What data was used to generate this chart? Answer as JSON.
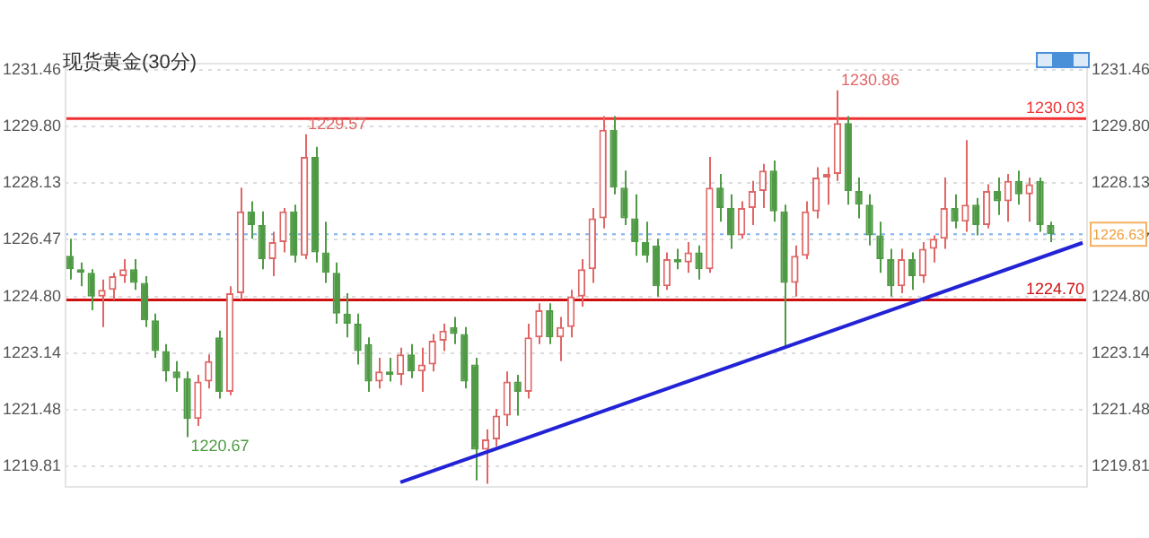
{
  "chart_data": {
    "type": "candlestick",
    "title": "现货黄金(30分)",
    "categories": [
      null,
      null,
      null,
      null,
      null,
      null,
      null,
      null,
      null,
      null,
      null,
      null,
      null,
      null,
      null,
      null,
      null,
      null,
      null,
      null,
      null,
      null,
      null,
      null,
      null,
      null,
      null,
      null,
      null,
      null,
      null,
      null,
      null,
      null,
      null,
      null,
      null,
      null,
      null,
      null,
      null,
      null,
      null,
      null,
      null,
      null,
      null,
      null,
      null,
      null,
      null,
      null,
      null,
      null,
      null,
      null,
      null,
      null,
      null,
      null,
      null,
      null,
      null,
      null,
      null,
      null,
      null,
      null,
      null,
      null,
      null,
      null,
      null,
      null,
      null,
      null,
      null,
      null,
      null,
      null,
      null,
      null,
      null,
      null,
      null,
      null,
      null,
      null,
      null,
      null,
      null,
      null,
      null,
      null,
      null,
      null
    ],
    "ohlc": [
      [
        1226.0,
        1226.5,
        1225.3,
        1225.6
      ],
      [
        1225.6,
        1225.8,
        1225.1,
        1225.5
      ],
      [
        1225.5,
        1225.6,
        1224.4,
        1224.8
      ],
      [
        1224.8,
        1225.3,
        1223.9,
        1225.0
      ],
      [
        1225.0,
        1225.5,
        1224.7,
        1225.4
      ],
      [
        1225.4,
        1225.9,
        1225.2,
        1225.6
      ],
      [
        1225.6,
        1225.9,
        1225.0,
        1225.2
      ],
      [
        1225.2,
        1225.4,
        1223.9,
        1224.1
      ],
      [
        1224.1,
        1224.3,
        1223.0,
        1223.2
      ],
      [
        1223.2,
        1223.4,
        1222.3,
        1222.6
      ],
      [
        1222.6,
        1222.9,
        1222.0,
        1222.4
      ],
      [
        1222.4,
        1222.6,
        1220.67,
        1221.2
      ],
      [
        1221.2,
        1222.5,
        1221.0,
        1222.3
      ],
      [
        1222.3,
        1223.1,
        1222.1,
        1222.9
      ],
      [
        1223.6,
        1223.8,
        1221.8,
        1222.0
      ],
      [
        1222.0,
        1225.1,
        1221.9,
        1224.9
      ],
      [
        1224.9,
        1228.0,
        1224.7,
        1227.3
      ],
      [
        1227.3,
        1227.6,
        1226.5,
        1226.9
      ],
      [
        1226.9,
        1227.3,
        1225.6,
        1225.9
      ],
      [
        1225.9,
        1226.7,
        1225.4,
        1226.4
      ],
      [
        1226.4,
        1227.4,
        1226.1,
        1227.3
      ],
      [
        1227.3,
        1227.5,
        1225.8,
        1226.0
      ],
      [
        1226.0,
        1229.57,
        1225.9,
        1228.9
      ],
      [
        1228.9,
        1229.2,
        1225.8,
        1226.1
      ],
      [
        1226.1,
        1227.0,
        1225.2,
        1225.5
      ],
      [
        1225.5,
        1225.8,
        1224.0,
        1224.3
      ],
      [
        1224.3,
        1224.9,
        1223.6,
        1224.0
      ],
      [
        1224.0,
        1224.3,
        1222.8,
        1223.2
      ],
      [
        1223.4,
        1223.6,
        1222.0,
        1222.3
      ],
      [
        1222.3,
        1223.0,
        1222.1,
        1222.6
      ],
      [
        1222.6,
        1223.0,
        1222.3,
        1222.5
      ],
      [
        1222.5,
        1223.3,
        1222.2,
        1223.1
      ],
      [
        1223.1,
        1223.4,
        1222.4,
        1222.6
      ],
      [
        1222.6,
        1223.3,
        1222.0,
        1222.8
      ],
      [
        1222.8,
        1223.7,
        1222.6,
        1223.5
      ],
      [
        1223.5,
        1224.0,
        1223.2,
        1223.8
      ],
      [
        1223.9,
        1224.2,
        1223.4,
        1223.7
      ],
      [
        1223.7,
        1223.9,
        1222.1,
        1222.3
      ],
      [
        1222.8,
        1223.0,
        1219.4,
        1220.3
      ],
      [
        1220.3,
        1220.9,
        1219.3,
        1220.6
      ],
      [
        1220.6,
        1221.5,
        1220.4,
        1221.3
      ],
      [
        1221.3,
        1222.6,
        1221.0,
        1222.3
      ],
      [
        1222.3,
        1222.5,
        1221.3,
        1222.0
      ],
      [
        1222.0,
        1224.0,
        1221.8,
        1223.6
      ],
      [
        1223.6,
        1224.6,
        1223.4,
        1224.4
      ],
      [
        1224.4,
        1224.6,
        1223.4,
        1223.6
      ],
      [
        1223.6,
        1224.2,
        1222.9,
        1223.9
      ],
      [
        1223.9,
        1225.0,
        1223.6,
        1224.8
      ],
      [
        1224.8,
        1225.9,
        1224.5,
        1225.6
      ],
      [
        1225.6,
        1227.4,
        1225.2,
        1227.1
      ],
      [
        1227.1,
        1230.1,
        1226.8,
        1229.7
      ],
      [
        1229.7,
        1230.1,
        1227.8,
        1228.0
      ],
      [
        1228.0,
        1228.5,
        1226.9,
        1227.1
      ],
      [
        1227.1,
        1227.8,
        1226.0,
        1226.4
      ],
      [
        1226.4,
        1227.0,
        1225.8,
        1226.0
      ],
      [
        1226.3,
        1226.5,
        1224.8,
        1225.1
      ],
      [
        1225.1,
        1226.1,
        1225.0,
        1225.9
      ],
      [
        1225.9,
        1226.2,
        1225.6,
        1225.8
      ],
      [
        1225.8,
        1226.4,
        1225.5,
        1226.1
      ],
      [
        1226.1,
        1226.3,
        1225.3,
        1225.6
      ],
      [
        1225.6,
        1228.9,
        1225.5,
        1228.0
      ],
      [
        1228.0,
        1228.4,
        1227.0,
        1227.4
      ],
      [
        1227.4,
        1227.8,
        1226.2,
        1226.6
      ],
      [
        1226.6,
        1227.6,
        1226.5,
        1227.4
      ],
      [
        1227.4,
        1228.2,
        1226.9,
        1227.9
      ],
      [
        1227.9,
        1228.7,
        1227.4,
        1228.5
      ],
      [
        1228.5,
        1228.8,
        1227.0,
        1227.3
      ],
      [
        1227.3,
        1227.5,
        1223.3,
        1225.2
      ],
      [
        1225.2,
        1226.3,
        1224.8,
        1226.0
      ],
      [
        1226.0,
        1227.6,
        1225.9,
        1227.3
      ],
      [
        1227.3,
        1228.6,
        1227.1,
        1228.3
      ],
      [
        1228.3,
        1228.6,
        1227.5,
        1228.4
      ],
      [
        1228.4,
        1230.86,
        1228.2,
        1229.9
      ],
      [
        1229.9,
        1230.1,
        1227.5,
        1227.9
      ],
      [
        1227.9,
        1228.3,
        1227.1,
        1227.5
      ],
      [
        1227.5,
        1227.8,
        1226.3,
        1226.6
      ],
      [
        1226.6,
        1227.0,
        1225.5,
        1225.9
      ],
      [
        1225.9,
        1226.2,
        1224.8,
        1225.1
      ],
      [
        1225.1,
        1226.2,
        1224.9,
        1225.9
      ],
      [
        1225.9,
        1226.1,
        1225.0,
        1225.4
      ],
      [
        1225.4,
        1226.4,
        1225.2,
        1226.2
      ],
      [
        1226.2,
        1226.6,
        1225.8,
        1226.5
      ],
      [
        1226.5,
        1228.3,
        1226.2,
        1227.4
      ],
      [
        1227.4,
        1227.8,
        1226.8,
        1227.0
      ],
      [
        1227.0,
        1229.4,
        1226.7,
        1227.5
      ],
      [
        1227.5,
        1227.7,
        1226.6,
        1226.9
      ],
      [
        1226.9,
        1228.1,
        1226.8,
        1227.9
      ],
      [
        1227.9,
        1228.3,
        1227.2,
        1227.6
      ],
      [
        1227.6,
        1228.4,
        1227.0,
        1228.2
      ],
      [
        1228.2,
        1228.5,
        1227.5,
        1227.8
      ],
      [
        1227.8,
        1228.3,
        1227.0,
        1228.1
      ],
      [
        1228.2,
        1228.3,
        1226.7,
        1226.9
      ],
      [
        1226.9,
        1227.0,
        1226.4,
        1226.63
      ],
      null,
      null,
      null
    ],
    "colors": [
      "#4f9a44",
      "#4f9a44",
      "#4f9a44",
      "#e06666",
      "#e06666",
      "#e06666",
      "#4f9a44",
      "#4f9a44",
      "#4f9a44",
      "#4f9a44",
      "#4f9a44",
      "#4f9a44",
      "#e06666",
      "#e06666",
      "#4f9a44",
      "#e06666",
      "#e06666",
      "#4f9a44",
      "#4f9a44",
      "#e06666",
      "#e06666",
      "#4f9a44",
      "#e06666",
      "#4f9a44",
      "#4f9a44",
      "#4f9a44",
      "#4f9a44",
      "#4f9a44",
      "#4f9a44",
      "#e06666",
      "#4f9a44",
      "#e06666",
      "#4f9a44",
      "#e06666",
      "#e06666",
      "#e06666",
      "#4f9a44",
      "#4f9a44",
      "#4f9a44",
      "#e06666",
      "#e06666",
      "#e06666",
      "#4f9a44",
      "#e06666",
      "#e06666",
      "#4f9a44",
      "#e06666",
      "#e06666",
      "#e06666",
      "#e06666",
      "#e06666",
      "#4f9a44",
      "#4f9a44",
      "#4f9a44",
      "#4f9a44",
      "#4f9a44",
      "#e06666",
      "#4f9a44",
      "#e06666",
      "#4f9a44",
      "#e06666",
      "#4f9a44",
      "#4f9a44",
      "#e06666",
      "#e06666",
      "#e06666",
      "#4f9a44",
      "#4f9a44",
      "#e06666",
      "#e06666",
      "#e06666",
      "#e06666",
      "#e06666",
      "#4f9a44",
      "#4f9a44",
      "#4f9a44",
      "#4f9a44",
      "#4f9a44",
      "#e06666",
      "#4f9a44",
      "#e06666",
      "#e06666",
      "#e06666",
      "#4f9a44",
      "#e06666",
      "#4f9a44",
      "#e06666",
      "#4f9a44",
      "#e06666",
      "#4f9a44",
      "#e06666",
      "#4f9a44",
      "#4f9a44",
      null,
      null,
      null
    ],
    "series": [
      {
        "type": "line",
        "color": "#2323d6",
        "values": [
          null,
          null,
          null,
          null,
          null,
          null,
          null,
          null,
          null,
          null,
          null,
          null,
          null,
          null,
          null,
          null,
          null,
          null,
          null,
          null,
          null,
          null,
          null,
          null,
          null,
          null,
          null,
          null,
          null,
          null,
          null,
          1219.34,
          null,
          null,
          null,
          null,
          null,
          null,
          null,
          null,
          null,
          null,
          null,
          null,
          null,
          null,
          null,
          null,
          null,
          null,
          null,
          null,
          null,
          null,
          null,
          null,
          null,
          null,
          null,
          null,
          null,
          null,
          null,
          null,
          null,
          null,
          null,
          null,
          null,
          null,
          null,
          null,
          null,
          null,
          null,
          null,
          null,
          null,
          null,
          null,
          null,
          null,
          null,
          null,
          null,
          null,
          null,
          null,
          null,
          null,
          null,
          null,
          null,
          null,
          null,
          1226.38
        ]
      }
    ],
    "ylim": [
      1219.18,
      1231.67
    ],
    "yticks": [
      1219.81,
      1221.48,
      1223.14,
      {
        "value": 1224.8,
        "label": "1224.80"
      },
      1226.47,
      1228.13,
      {
        "value": 1229.8,
        "label": "1229.80"
      },
      1231.46
    ],
    "y2lim": [
      1219.18,
      1231.67
    ],
    "y2ticks": [
      1219.81,
      1221.48,
      1223.14,
      {
        "value": 1224.8,
        "label": "1224.80"
      },
      1226.47,
      1228.13,
      {
        "value": 1229.8,
        "label": "1229.80"
      },
      1231.46
    ],
    "grid": "y",
    "ref_lines": [
      {
        "axis": "y",
        "value": 1230.03,
        "label": "1230.03",
        "color": "#f03030",
        "line_style": "solid"
      },
      {
        "axis": "y",
        "value": 1224.7,
        "label": "1224.70",
        "color": "#d01010",
        "line_style": "solid"
      },
      {
        "axis": "y",
        "value": 1226.63,
        "label": "1226.63",
        "color": "#7fb2ee",
        "line_style": "dotted"
      }
    ],
    "annotations": [
      "1229.57",
      "1230.86",
      "1220.67"
    ]
  }
}
